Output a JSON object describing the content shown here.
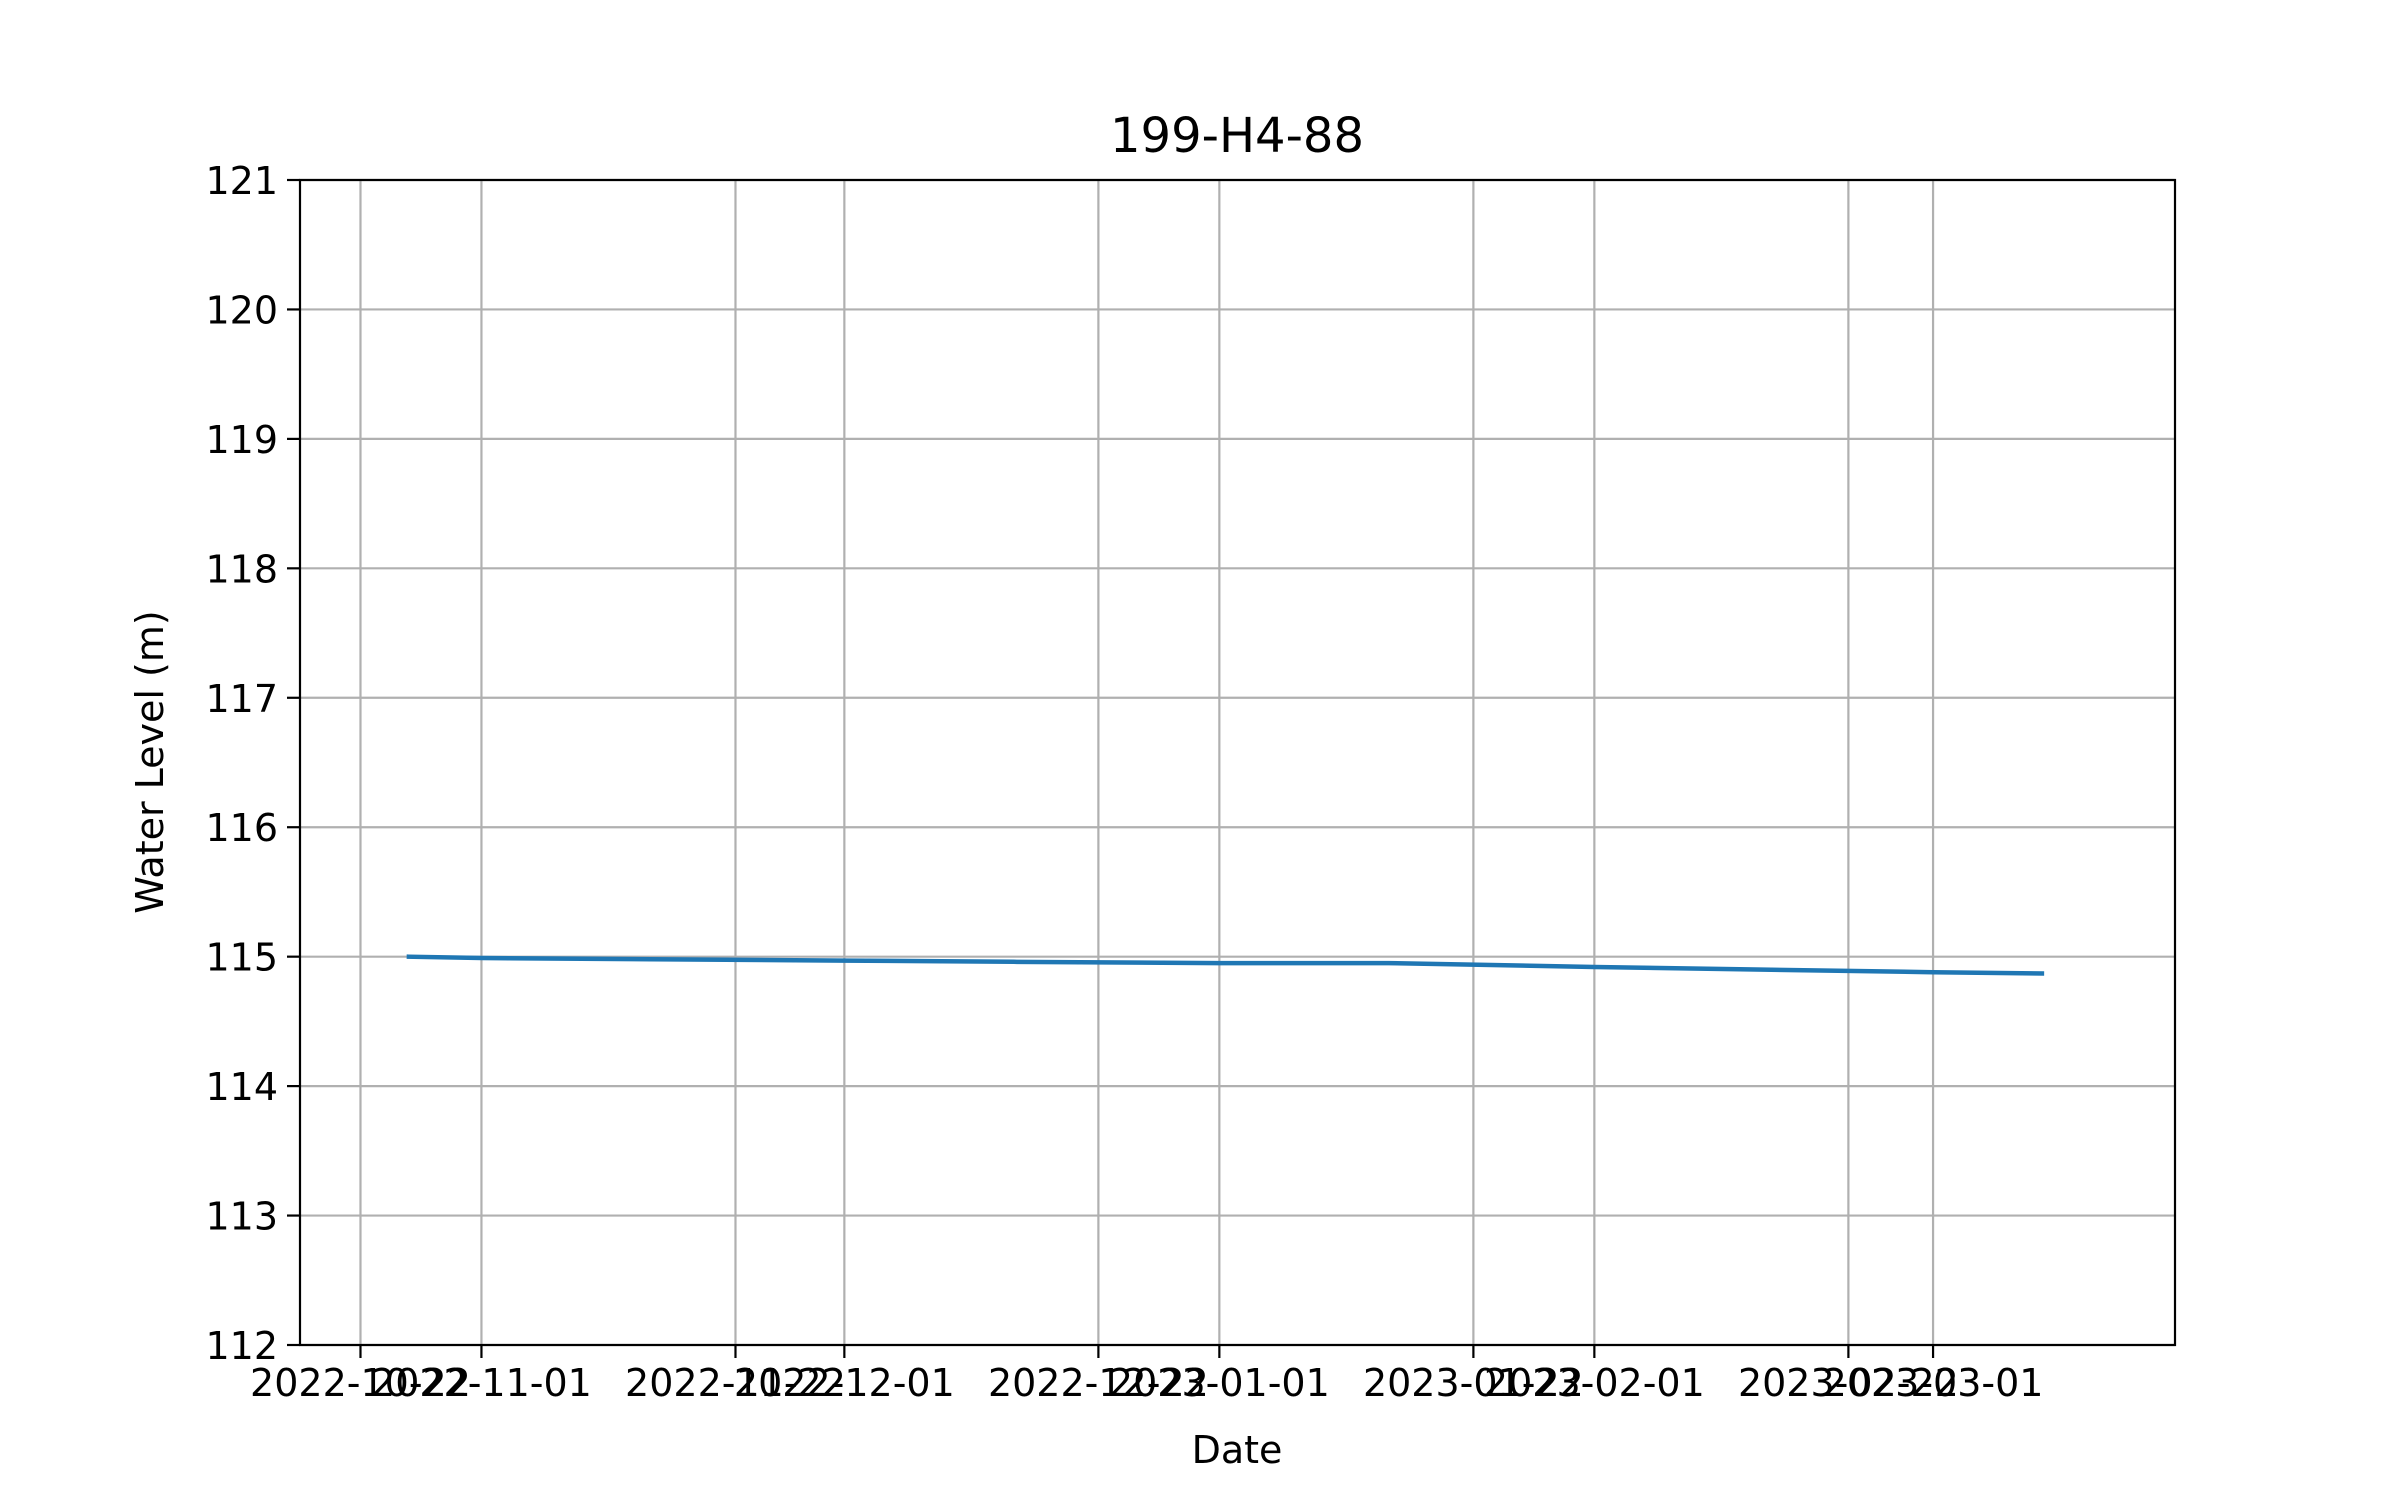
{
  "chart_data": {
    "type": "line",
    "title": "199-H4-88",
    "xlabel": "Date",
    "ylabel": "Water Level (m)",
    "ylim": [
      112,
      121
    ],
    "xlim": [
      "2022-10-17",
      "2023-03-21"
    ],
    "grid": true,
    "x_ticks": [
      "2022-10-22",
      "2022-11-01",
      "2022-11-22",
      "2022-12-01",
      "2022-12-22",
      "2023-01-01",
      "2023-01-22",
      "2023-02-01",
      "2023-02-22",
      "2023-03-01"
    ],
    "y_ticks": [
      112,
      113,
      114,
      115,
      116,
      117,
      118,
      119,
      120,
      121
    ],
    "series": [
      {
        "color": "#1f77b4",
        "x": [
          "2022-10-26",
          "2022-11-01",
          "2022-11-15",
          "2022-12-01",
          "2022-12-15",
          "2023-01-01",
          "2023-01-15",
          "2023-02-01",
          "2023-02-15",
          "2023-03-01",
          "2023-03-10"
        ],
        "y": [
          115.0,
          114.99,
          114.98,
          114.97,
          114.96,
          114.95,
          114.95,
          114.92,
          114.9,
          114.88,
          114.87
        ]
      }
    ]
  }
}
